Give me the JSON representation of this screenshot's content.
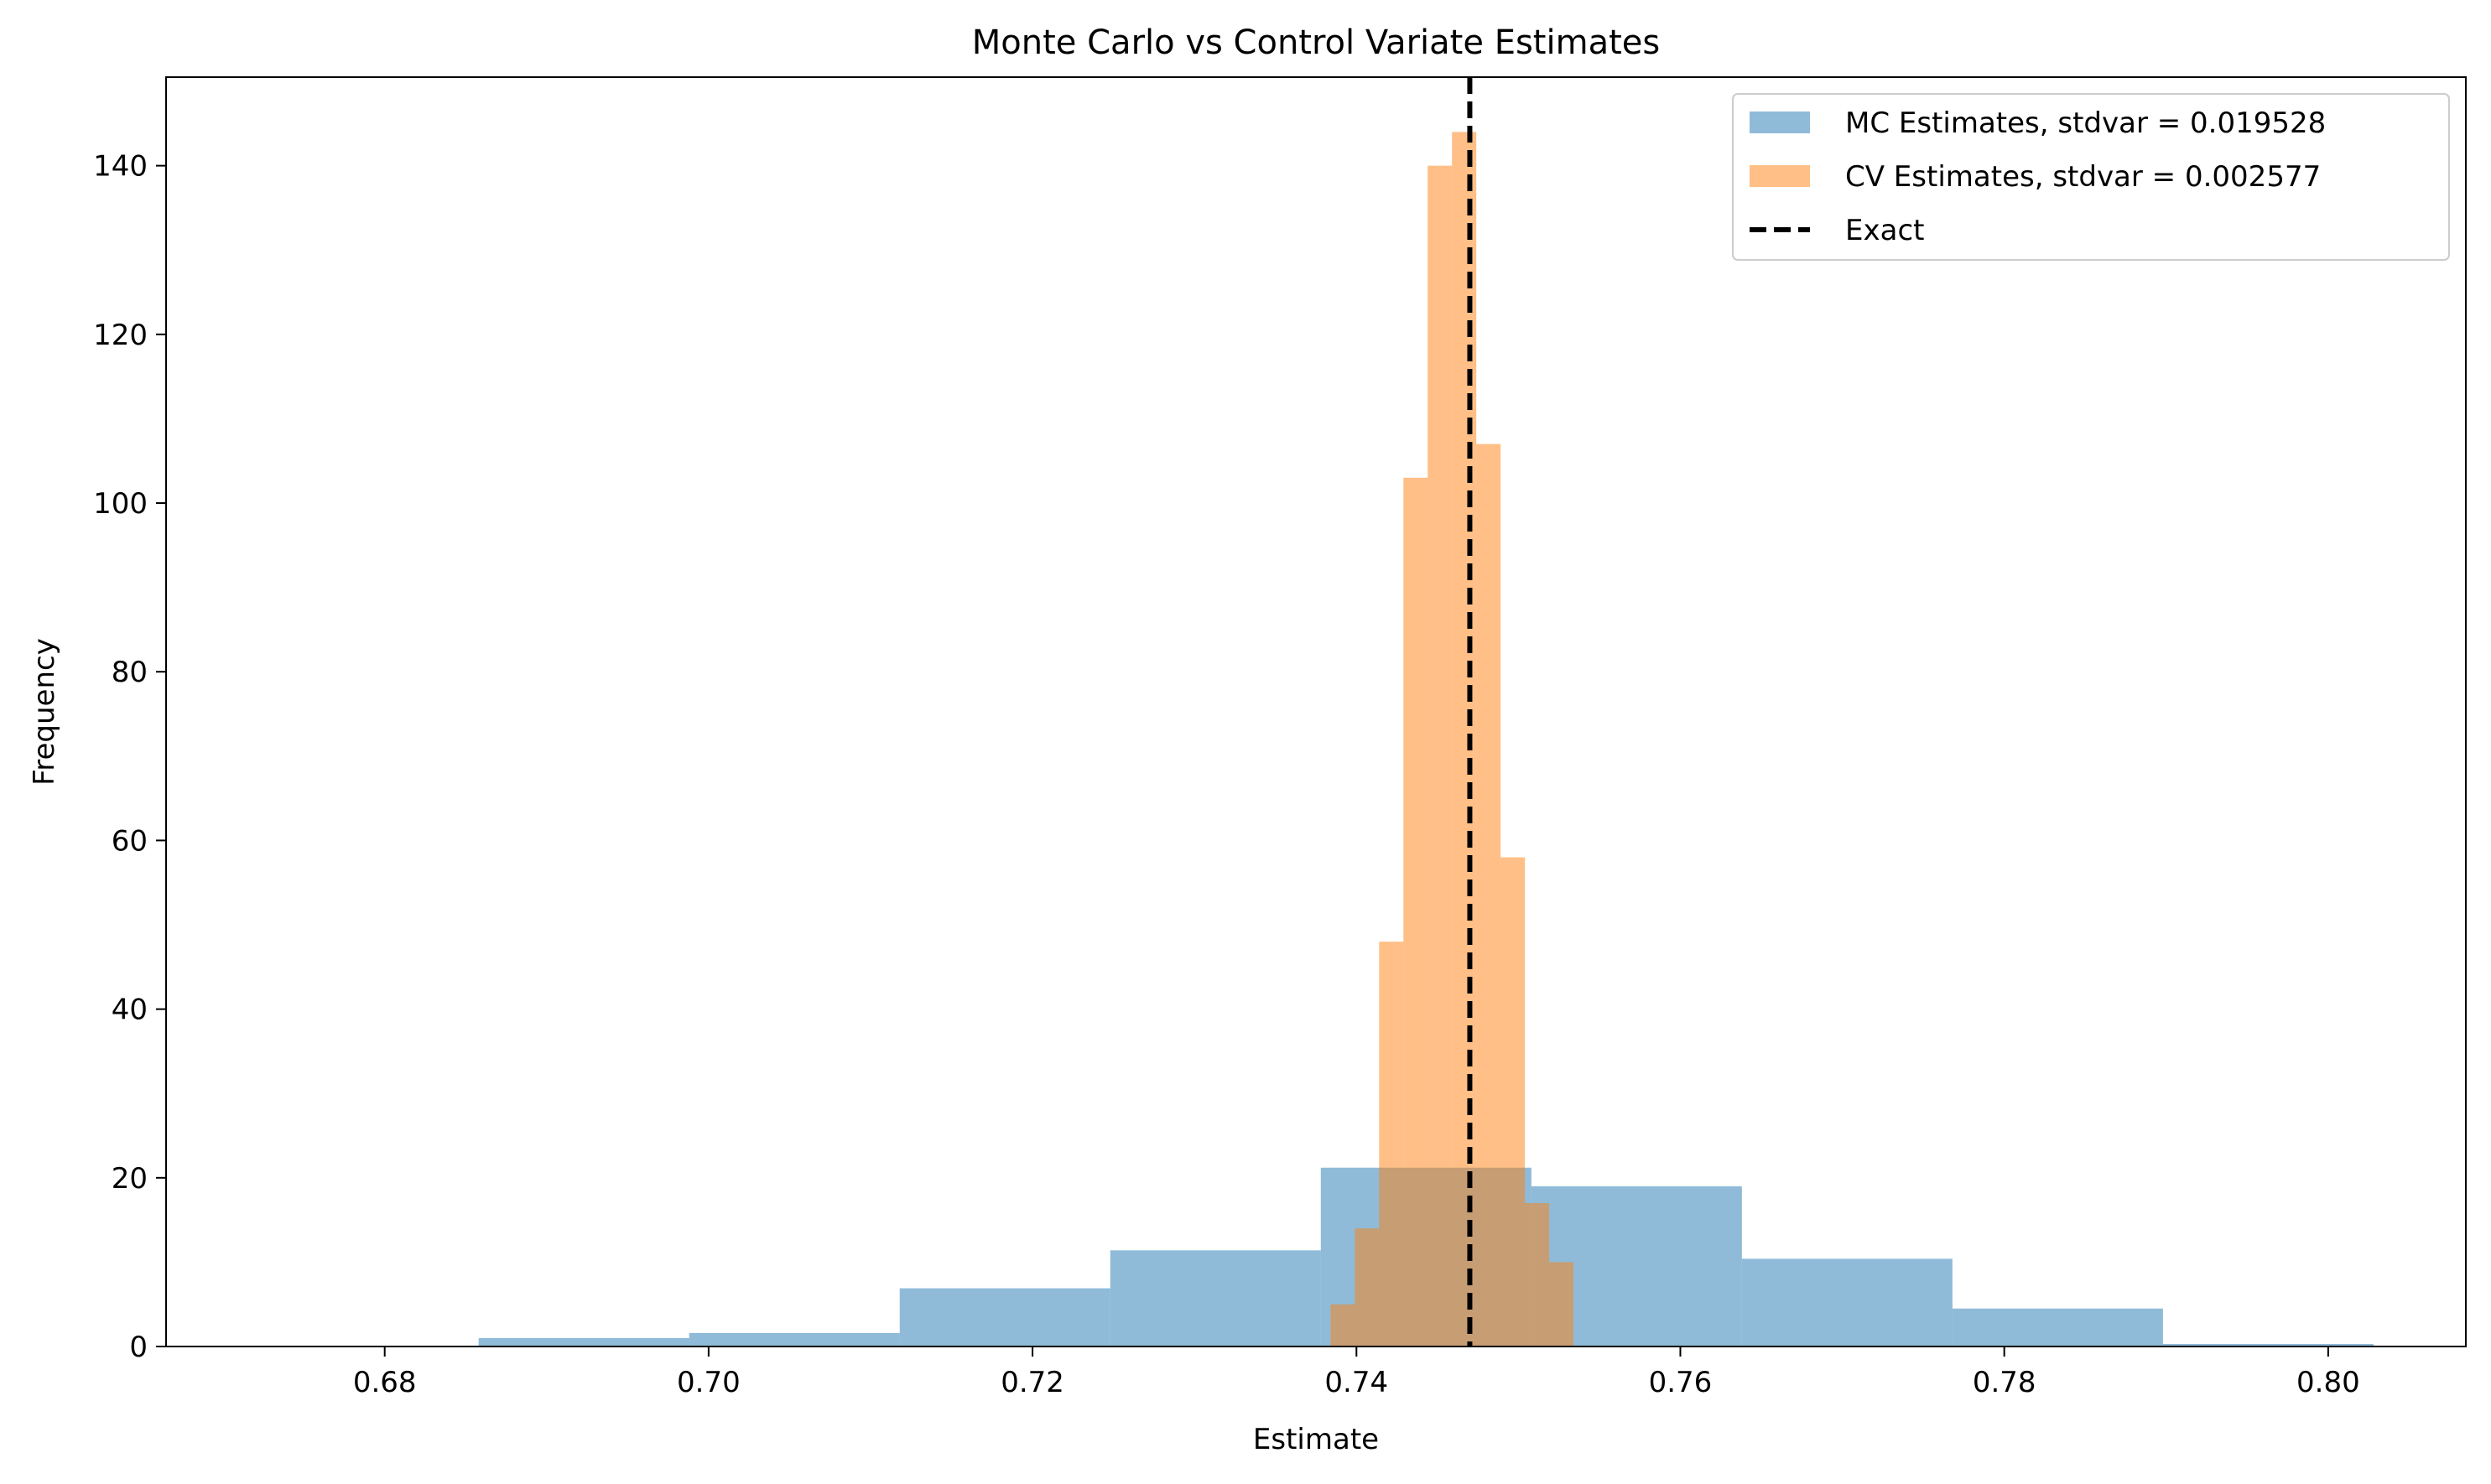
{
  "chart_data": {
    "type": "histogram",
    "title": "Monte Carlo vs Control Variate Estimates",
    "xlabel": "Estimate",
    "ylabel": "Frequency",
    "xlim": [
      0.6665,
      0.8085
    ],
    "ylim": [
      0,
      150.5
    ],
    "xticks": [
      0.68,
      0.7,
      0.72,
      0.74,
      0.76,
      0.78,
      0.8
    ],
    "xtick_labels": [
      "0.68",
      "0.70",
      "0.72",
      "0.74",
      "0.76",
      "0.78",
      "0.80"
    ],
    "yticks": [
      0,
      20,
      40,
      60,
      80,
      100,
      120,
      140
    ],
    "ytick_labels": [
      "0",
      "20",
      "40",
      "60",
      "80",
      "100",
      "120",
      "140"
    ],
    "grid": false,
    "legend_position": "top-right",
    "series": [
      {
        "name": "MC Estimates, stdvar = 0.019528",
        "color": "#1f77b4",
        "opacity": 0.5,
        "bin_edges": [
          0.6858,
          0.6988,
          0.7118,
          0.7248,
          0.7378,
          0.7508,
          0.7638,
          0.7768,
          0.7898,
          0.8028
        ],
        "counts": [
          1,
          1.6,
          6.9,
          11.4,
          21.2,
          19.0,
          10.4,
          4.5,
          0.3
        ]
      },
      {
        "name": "CV Estimates, stdvar = 0.002577",
        "color": "#ff7f0e",
        "opacity": 0.5,
        "bin_edges": [
          0.7384,
          0.7399,
          0.7414,
          0.7429,
          0.7444,
          0.7459,
          0.7474,
          0.7489,
          0.7504,
          0.7519,
          0.7534
        ],
        "counts": [
          5,
          14,
          48,
          103,
          140,
          144,
          107,
          58,
          17,
          10
        ]
      }
    ],
    "exact_line": {
      "name": "Exact",
      "x": 0.747,
      "color": "#000000",
      "style": "dashed"
    }
  }
}
